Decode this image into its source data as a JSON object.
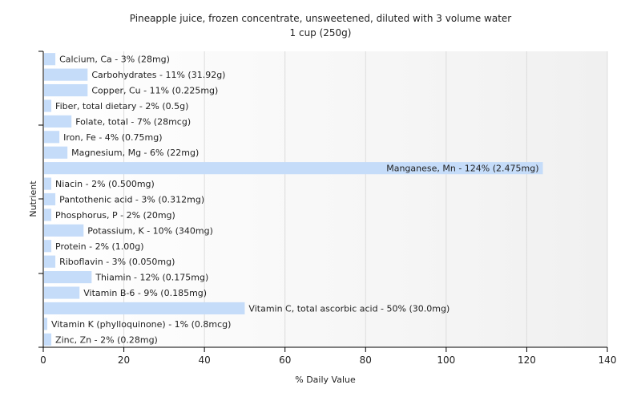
{
  "chart_data": {
    "type": "bar",
    "orientation": "horizontal",
    "title": "Pineapple juice, frozen concentrate, unsweetened, diluted with 3 volume water",
    "subtitle": "1 cup (250g)",
    "xlabel": "% Daily Value",
    "ylabel": "Nutrient",
    "xlim": [
      0,
      140
    ],
    "xticks": [
      0,
      20,
      40,
      60,
      80,
      100,
      120,
      140
    ],
    "grid": true,
    "bar_color": "#c5dcf9",
    "categories": [
      "Calcium, Ca",
      "Carbohydrates",
      "Copper, Cu",
      "Fiber, total dietary",
      "Folate, total",
      "Iron, Fe",
      "Magnesium, Mg",
      "Manganese, Mn",
      "Niacin",
      "Pantothenic acid",
      "Phosphorus, P",
      "Potassium, K",
      "Protein",
      "Riboflavin",
      "Thiamin",
      "Vitamin B-6",
      "Vitamin C, total ascorbic acid",
      "Vitamin K (phylloquinone)",
      "Zinc, Zn"
    ],
    "values": [
      3,
      11,
      11,
      2,
      7,
      4,
      6,
      124,
      2,
      3,
      2,
      10,
      2,
      3,
      12,
      9,
      50,
      1,
      2
    ],
    "labels": [
      "Calcium, Ca - 3% (28mg)",
      "Carbohydrates - 11% (31.92g)",
      "Copper, Cu - 11% (0.225mg)",
      "Fiber, total dietary - 2% (0.5g)",
      "Folate, total - 7% (28mcg)",
      "Iron, Fe - 4% (0.75mg)",
      "Magnesium, Mg - 6% (22mg)",
      "Manganese, Mn - 124% (2.475mg)",
      "Niacin - 2% (0.500mg)",
      "Pantothenic acid - 3% (0.312mg)",
      "Phosphorus, P - 2% (20mg)",
      "Potassium, K - 10% (340mg)",
      "Protein - 2% (1.00g)",
      "Riboflavin - 3% (0.050mg)",
      "Thiamin - 12% (0.175mg)",
      "Vitamin B-6 - 9% (0.185mg)",
      "Vitamin C, total ascorbic acid - 50% (30.0mg)",
      "Vitamin K (phylloquinone) - 1% (0.8mcg)",
      "Zinc, Zn - 2% (0.28mg)"
    ]
  }
}
